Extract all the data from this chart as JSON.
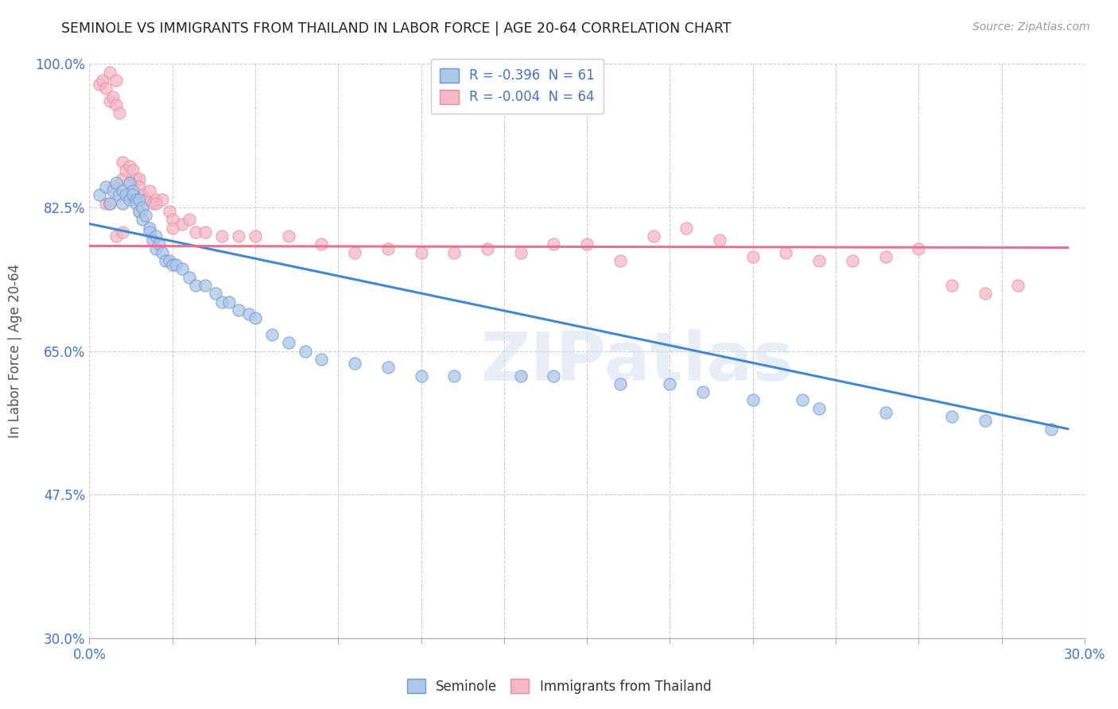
{
  "title": "SEMINOLE VS IMMIGRANTS FROM THAILAND IN LABOR FORCE | AGE 20-64 CORRELATION CHART",
  "source": "Source: ZipAtlas.com",
  "ylabel": "In Labor Force | Age 20-64",
  "xlim": [
    0.0,
    0.3
  ],
  "ylim": [
    0.3,
    1.0
  ],
  "xticks": [
    0.0,
    0.025,
    0.05,
    0.075,
    0.1,
    0.125,
    0.15,
    0.175,
    0.2,
    0.225,
    0.25,
    0.275,
    0.3
  ],
  "xticklabels_show": [
    "0.0%",
    "30.0%"
  ],
  "yticks": [
    0.3,
    0.475,
    0.65,
    0.825,
    1.0
  ],
  "yticklabels": [
    "30.0%",
    "47.5%",
    "65.0%",
    "82.5%",
    "100.0%"
  ],
  "legend_r1": "R = -0.396  N = 61",
  "legend_r2": "R = -0.004  N = 64",
  "seminole_color": "#aec6e8",
  "seminole_edge_color": "#6699cc",
  "thailand_color": "#f4b8c8",
  "thailand_edge_color": "#e88aa0",
  "seminole_line_color": "#4488cc",
  "thailand_line_color": "#e87090",
  "watermark": "ZIPatlas",
  "background_color": "#ffffff",
  "grid_color": "#cccccc",
  "seminole_x": [
    0.003,
    0.005,
    0.006,
    0.007,
    0.008,
    0.009,
    0.01,
    0.01,
    0.011,
    0.012,
    0.012,
    0.013,
    0.013,
    0.014,
    0.014,
    0.015,
    0.015,
    0.016,
    0.016,
    0.017,
    0.018,
    0.018,
    0.019,
    0.02,
    0.02,
    0.021,
    0.022,
    0.023,
    0.024,
    0.025,
    0.026,
    0.028,
    0.03,
    0.032,
    0.035,
    0.038,
    0.04,
    0.042,
    0.045,
    0.048,
    0.05,
    0.055,
    0.06,
    0.065,
    0.07,
    0.08,
    0.09,
    0.1,
    0.11,
    0.13,
    0.14,
    0.16,
    0.175,
    0.185,
    0.2,
    0.215,
    0.22,
    0.24,
    0.26,
    0.27,
    0.29
  ],
  "seminole_y": [
    0.84,
    0.85,
    0.83,
    0.845,
    0.855,
    0.84,
    0.83,
    0.845,
    0.84,
    0.835,
    0.855,
    0.845,
    0.84,
    0.835,
    0.83,
    0.835,
    0.82,
    0.825,
    0.81,
    0.815,
    0.8,
    0.795,
    0.785,
    0.79,
    0.775,
    0.78,
    0.77,
    0.76,
    0.76,
    0.755,
    0.755,
    0.75,
    0.74,
    0.73,
    0.73,
    0.72,
    0.71,
    0.71,
    0.7,
    0.695,
    0.69,
    0.67,
    0.66,
    0.65,
    0.64,
    0.635,
    0.63,
    0.62,
    0.62,
    0.62,
    0.62,
    0.61,
    0.61,
    0.6,
    0.59,
    0.59,
    0.58,
    0.575,
    0.57,
    0.565,
    0.555
  ],
  "thailand_x": [
    0.003,
    0.004,
    0.005,
    0.006,
    0.006,
    0.007,
    0.008,
    0.008,
    0.009,
    0.01,
    0.01,
    0.011,
    0.012,
    0.012,
    0.013,
    0.014,
    0.015,
    0.015,
    0.016,
    0.017,
    0.018,
    0.019,
    0.02,
    0.022,
    0.024,
    0.025,
    0.028,
    0.03,
    0.032,
    0.035,
    0.04,
    0.045,
    0.05,
    0.06,
    0.07,
    0.08,
    0.09,
    0.1,
    0.11,
    0.12,
    0.13,
    0.14,
    0.15,
    0.16,
    0.17,
    0.18,
    0.19,
    0.2,
    0.21,
    0.22,
    0.23,
    0.24,
    0.25,
    0.26,
    0.27,
    0.28,
    0.008,
    0.01,
    0.005,
    0.006,
    0.007,
    0.015,
    0.02,
    0.025
  ],
  "thailand_y": [
    0.975,
    0.98,
    0.97,
    0.955,
    0.99,
    0.96,
    0.95,
    0.98,
    0.94,
    0.88,
    0.86,
    0.87,
    0.875,
    0.855,
    0.87,
    0.86,
    0.86,
    0.85,
    0.84,
    0.835,
    0.845,
    0.83,
    0.835,
    0.835,
    0.82,
    0.81,
    0.805,
    0.81,
    0.795,
    0.795,
    0.79,
    0.79,
    0.79,
    0.79,
    0.78,
    0.77,
    0.775,
    0.77,
    0.77,
    0.775,
    0.77,
    0.78,
    0.78,
    0.76,
    0.79,
    0.8,
    0.785,
    0.765,
    0.77,
    0.76,
    0.76,
    0.765,
    0.775,
    0.73,
    0.72,
    0.73,
    0.79,
    0.795,
    0.83,
    0.83,
    0.85,
    0.82,
    0.83,
    0.8
  ],
  "seminole_trend_x": [
    0.0,
    0.295
  ],
  "seminole_trend_y": [
    0.805,
    0.555
  ],
  "thailand_trend_x": [
    0.0,
    0.295
  ],
  "thailand_trend_y": [
    0.778,
    0.776
  ]
}
